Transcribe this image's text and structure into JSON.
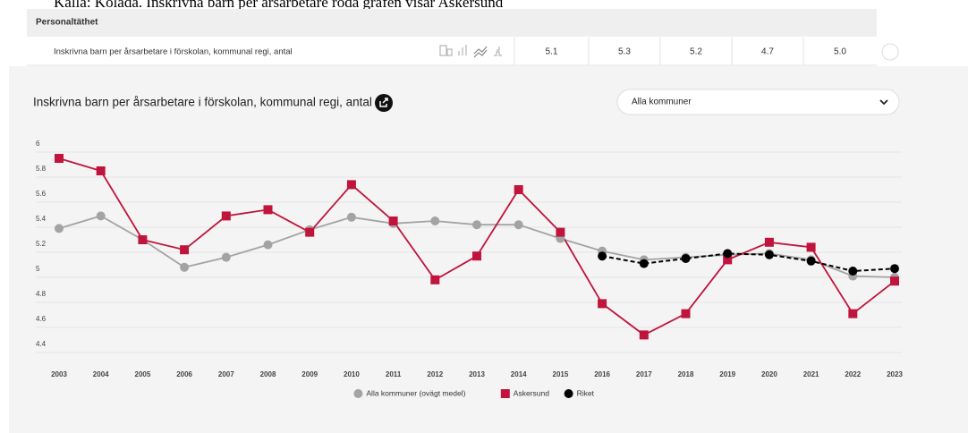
{
  "caption": "Källa: Kolada. Inskrivna barn per årsarbetare röda grafen visar Askersund",
  "table": {
    "header": "Personaltäthet",
    "row": {
      "label": "Inskrivna barn per årsarbetare i förskolan, kommunal regi, antal",
      "values": [
        "5.1",
        "5.3",
        "5.2",
        "4.7",
        "5.0"
      ]
    }
  },
  "dropdown": "Alla kommuner",
  "chart_data": {
    "type": "line",
    "title": "Inskrivna barn per årsarbetare i förskolan, kommunal regi, antal",
    "categories": [
      "2003",
      "2004",
      "2005",
      "2006",
      "2007",
      "2008",
      "2009",
      "2010",
      "2011",
      "2012",
      "2013",
      "2014",
      "2015",
      "2016",
      "2017",
      "2018",
      "2019",
      "2020",
      "2021",
      "2022",
      "2023"
    ],
    "series": [
      {
        "name": "Alla kommuner (ovägt medel)",
        "color": "#a3a3a3",
        "marker": "circle",
        "dashed": false,
        "values": [
          5.39,
          5.49,
          5.3,
          5.08,
          5.16,
          5.26,
          5.38,
          5.48,
          5.43,
          5.45,
          5.42,
          5.42,
          5.31,
          5.21,
          5.14,
          5.16,
          5.18,
          5.19,
          5.14,
          5.01,
          5.0
        ]
      },
      {
        "name": "Askersund",
        "color": "#c0143c",
        "marker": "square",
        "dashed": false,
        "values": [
          5.95,
          5.85,
          5.3,
          5.22,
          5.49,
          5.54,
          5.36,
          5.74,
          5.45,
          4.98,
          5.17,
          5.7,
          5.36,
          4.79,
          4.54,
          4.71,
          5.14,
          5.28,
          5.24,
          4.71,
          4.97
        ]
      },
      {
        "name": "Riket",
        "color": "#000000",
        "marker": "circle",
        "dashed": true,
        "values": [
          null,
          null,
          null,
          null,
          null,
          null,
          null,
          null,
          null,
          null,
          null,
          null,
          null,
          5.17,
          5.11,
          5.15,
          5.19,
          5.18,
          5.13,
          5.05,
          5.07
        ]
      }
    ],
    "ylim": [
      4.3,
      6
    ],
    "yticks": [
      4.4,
      4.6,
      4.8,
      5,
      5.2,
      5.4,
      5.6,
      5.8,
      6
    ],
    "grid": true,
    "legend": "bottom"
  }
}
